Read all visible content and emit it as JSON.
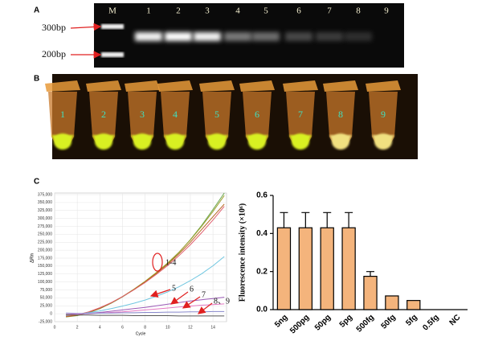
{
  "panels": [
    "A",
    "B",
    "C"
  ],
  "gel": {
    "lanes": [
      "M",
      "1",
      "2",
      "3",
      "4",
      "5",
      "6",
      "7",
      "8",
      "9"
    ],
    "markers": [
      "300bp",
      "200bp"
    ]
  },
  "tubes": {
    "labels": [
      "1",
      "2",
      "3",
      "4",
      "5",
      "6",
      "7",
      "8",
      "9"
    ]
  },
  "chart_data": [
    {
      "type": "line",
      "x_label": "Cycle",
      "y_label": "ΔRn",
      "x": [
        1,
        2,
        3,
        4,
        5,
        6,
        7,
        8,
        9,
        10,
        11,
        12,
        13,
        14,
        15
      ],
      "xlim": [
        0,
        15.2
      ],
      "xticks": [
        0,
        2,
        4,
        6,
        8,
        10,
        12,
        14
      ],
      "ylim": [
        -25000,
        375000
      ],
      "yticks": [
        {
          "value": -25000,
          "label": "-25,000"
        },
        0,
        {
          "value": 25000,
          "label": "25,000"
        },
        {
          "value": 50000,
          "label": "50,000"
        },
        {
          "value": 75000,
          "label": "75,000"
        },
        {
          "value": 100000,
          "label": "100,000"
        },
        {
          "value": 125000,
          "label": "125,000"
        },
        {
          "value": 150000,
          "label": "150,000"
        },
        {
          "value": 175000,
          "label": "175,000"
        },
        {
          "value": 200000,
          "label": "200,000"
        },
        {
          "value": 225000,
          "label": "225,000"
        },
        {
          "value": 250000,
          "label": "250,000"
        },
        {
          "value": 275000,
          "label": "275,000"
        },
        {
          "value": 300000,
          "label": "300,000"
        },
        {
          "value": 325000,
          "label": "325,000"
        },
        {
          "value": 350000,
          "label": "350,000"
        },
        {
          "value": 375000,
          "label": "375,000"
        }
      ],
      "grid": true,
      "series": [
        {
          "color": "#6aa84f",
          "values": [
            -10000,
            -6000,
            3000,
            16000,
            33000,
            53000,
            76000,
            101000,
            128000,
            158000,
            193000,
            233000,
            278000,
            328000,
            380000
          ]
        },
        {
          "color": "#a0a030",
          "values": [
            -8000,
            -4000,
            5000,
            18000,
            34000,
            54000,
            77000,
            102000,
            130000,
            160000,
            194000,
            232000,
            275000,
            322000,
            372000
          ]
        },
        {
          "color": "#b5651d",
          "values": [
            -9000,
            -5000,
            4000,
            17000,
            34000,
            54000,
            76000,
            100000,
            127000,
            156000,
            189000,
            225000,
            265000,
            305000,
            345000
          ]
        },
        {
          "color": "#e06070",
          "values": [
            -7000,
            -3000,
            6000,
            19000,
            35000,
            54000,
            75000,
            98000,
            124000,
            152000,
            183000,
            217000,
            255000,
            295000,
            338000
          ]
        },
        {
          "color": "#6fc6e0",
          "values": [
            -5000,
            -2000,
            3000,
            9000,
            16000,
            24000,
            33000,
            43000,
            55000,
            69000,
            85000,
            104000,
            126000,
            151000,
            180000
          ]
        },
        {
          "color": "#9b59b6",
          "values": [
            -3000,
            -1000,
            1000,
            4000,
            8000,
            12000,
            16000,
            20000,
            25000,
            30000,
            35000,
            40000,
            44000,
            48000,
            52000
          ]
        },
        {
          "color": "#e377c2",
          "values": [
            -2000,
            -1000,
            0,
            2000,
            4000,
            6000,
            9000,
            12000,
            15000,
            18000,
            21000,
            24000,
            27000,
            29000,
            31000
          ]
        },
        {
          "color": "#8888cc",
          "values": [
            2000,
            1000,
            1000,
            2000,
            2000,
            3000,
            3000,
            4000,
            4000,
            5000,
            5000,
            6000,
            6000,
            7000,
            7000
          ]
        },
        {
          "color": "#555555",
          "values": [
            -3000,
            -4000,
            -4000,
            -5000,
            -5000,
            -5000,
            -6000,
            -6000,
            -6000,
            -6000,
            -7000,
            -7000,
            -7000,
            -7000,
            -7000
          ]
        }
      ],
      "annotations": [
        "1-4",
        "5",
        "6",
        "7",
        "8、9"
      ]
    },
    {
      "type": "bar",
      "y_label": "Fluorescence intensity (×10⁶)",
      "categories": [
        "5ng",
        "500pg",
        "50pg",
        "5pg",
        "500fg",
        "50fg",
        "5fg",
        "0.5fg",
        "NC"
      ],
      "values": [
        0.43,
        0.43,
        0.43,
        0.43,
        0.175,
        0.072,
        0.048,
        0,
        0
      ],
      "errors": [
        0.08,
        0.08,
        0.08,
        0.08,
        0.025,
        0,
        0,
        0,
        0
      ],
      "color": "#f4b47c",
      "ylim": [
        0,
        0.6
      ],
      "yticks": [
        {
          "value": 0,
          "label": "0.0"
        },
        0.2,
        0.4,
        0.6
      ]
    }
  ]
}
